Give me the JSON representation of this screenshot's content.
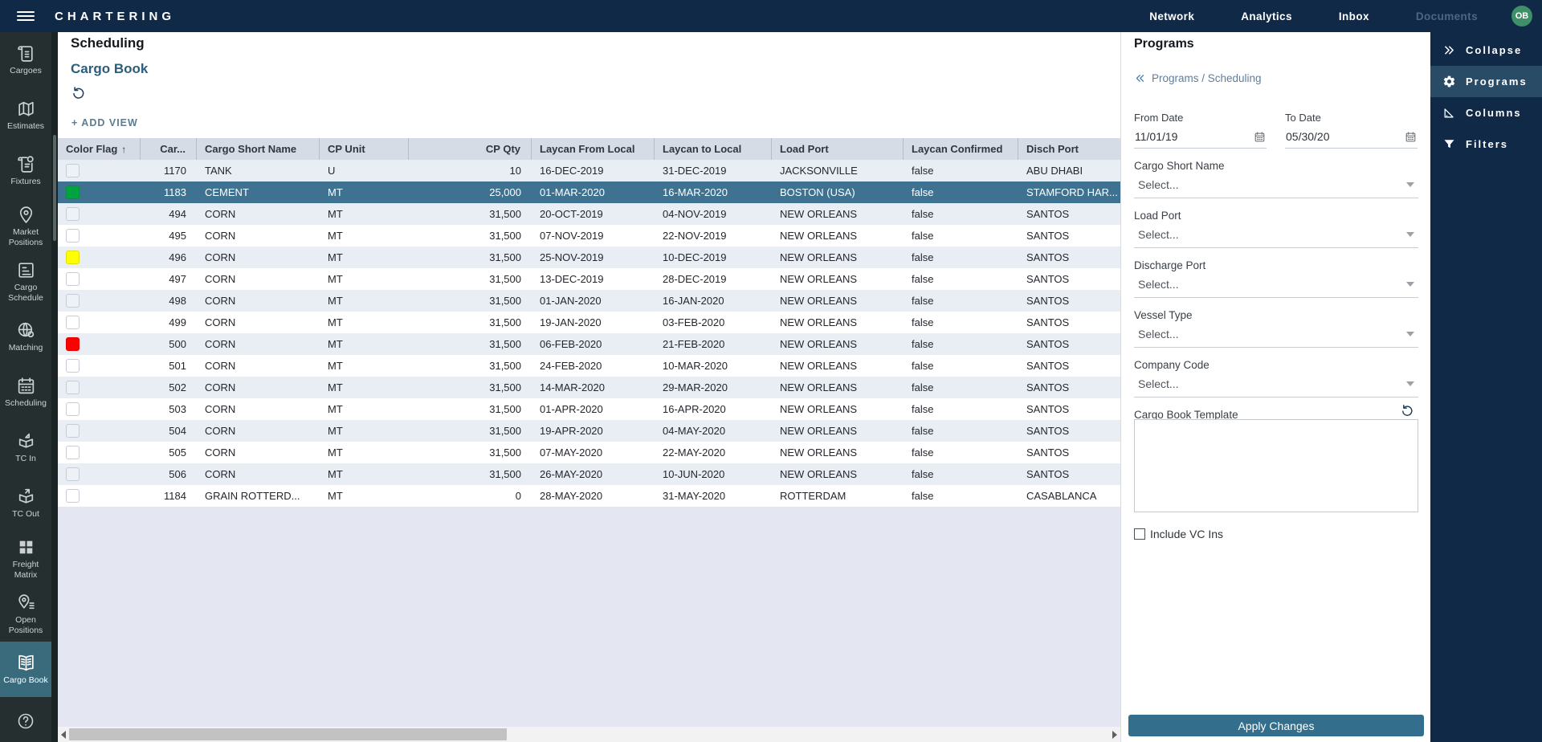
{
  "colors": {
    "navy": "#0f2947",
    "sidebar_bg": "#252f2f",
    "sidebar_active_bg": "#3a6b7d",
    "selected_row_bg": "#3e7290",
    "header_row_bg": "#d6dce6",
    "stripe_row_bg": "#e9eef4",
    "accent_blue": "#2b5d7d",
    "apply_button_bg": "#336f8d",
    "avatar_bg": "#3f8f68",
    "flag_green": "#00a33f",
    "flag_yellow": "#ffff00",
    "flag_red": "#ff0000"
  },
  "topbar": {
    "brand": "CHARTERING",
    "menu_icon": "hamburger-icon",
    "nav": [
      {
        "label": "Network",
        "muted": false
      },
      {
        "label": "Analytics",
        "muted": false
      },
      {
        "label": "Inbox",
        "muted": false
      },
      {
        "label": "Documents",
        "muted": true
      }
    ],
    "avatar": "OB"
  },
  "sidebar": {
    "items": [
      {
        "label": "Cargoes",
        "icon": "scroll-icon",
        "active": false
      },
      {
        "label": "Estimates",
        "icon": "map-icon",
        "active": false
      },
      {
        "label": "Fixtures",
        "icon": "scroll-gear-icon",
        "active": false
      },
      {
        "label": "Market Positions",
        "icon": "pin-icon",
        "active": false
      },
      {
        "label": "Cargo Schedule",
        "icon": "gantt-icon",
        "active": false
      },
      {
        "label": "Matching",
        "icon": "globe-gear-icon",
        "active": false
      },
      {
        "label": "Scheduling",
        "icon": "calendar-icon",
        "active": false
      },
      {
        "label": "TC In",
        "icon": "box-in-icon",
        "active": false
      },
      {
        "label": "TC Out",
        "icon": "box-out-icon",
        "active": false
      },
      {
        "label": "Freight Matrix",
        "icon": "grid-icon",
        "active": false
      },
      {
        "label": "Open Positions",
        "icon": "pin-list-icon",
        "active": false
      },
      {
        "label": "Cargo Book",
        "icon": "open-book-icon",
        "active": true
      }
    ],
    "help_icon": "help-icon"
  },
  "main": {
    "title": "Scheduling",
    "subtitle": "Cargo Book",
    "reset_icon": "undo-icon",
    "add_view_label": "+ ADD VIEW"
  },
  "table": {
    "columns": [
      {
        "key": "flag",
        "label": "Color Flag",
        "sorted_asc": true
      },
      {
        "key": "car",
        "label": "Car..."
      },
      {
        "key": "name",
        "label": "Cargo Short Name"
      },
      {
        "key": "unit",
        "label": "CP Unit"
      },
      {
        "key": "qty",
        "label": "CP Qty"
      },
      {
        "key": "from",
        "label": "Laycan From Local"
      },
      {
        "key": "to",
        "label": "Laycan to Local"
      },
      {
        "key": "load",
        "label": "Load Port"
      },
      {
        "key": "confirmed",
        "label": "Laycan Confirmed"
      },
      {
        "key": "disch",
        "label": "Disch Port"
      }
    ],
    "rows": [
      {
        "flag": "",
        "car": "1170",
        "name": "TANK",
        "unit": "U",
        "qty": "10",
        "from": "16-DEC-2019",
        "to": "31-DEC-2019",
        "load": "JACKSONVILLE",
        "confirmed": "false",
        "disch": "ABU DHABI",
        "selected": false
      },
      {
        "flag": "green",
        "car": "1183",
        "name": "CEMENT",
        "unit": "MT",
        "qty": "25,000",
        "from": "01-MAR-2020",
        "to": "16-MAR-2020",
        "load": "BOSTON (USA)",
        "confirmed": "false",
        "disch": "STAMFORD HAR...",
        "selected": true
      },
      {
        "flag": "",
        "car": "494",
        "name": "CORN",
        "unit": "MT",
        "qty": "31,500",
        "from": "20-OCT-2019",
        "to": "04-NOV-2019",
        "load": "NEW ORLEANS",
        "confirmed": "false",
        "disch": "SANTOS",
        "selected": false
      },
      {
        "flag": "",
        "car": "495",
        "name": "CORN",
        "unit": "MT",
        "qty": "31,500",
        "from": "07-NOV-2019",
        "to": "22-NOV-2019",
        "load": "NEW ORLEANS",
        "confirmed": "false",
        "disch": "SANTOS",
        "selected": false
      },
      {
        "flag": "yellow",
        "car": "496",
        "name": "CORN",
        "unit": "MT",
        "qty": "31,500",
        "from": "25-NOV-2019",
        "to": "10-DEC-2019",
        "load": "NEW ORLEANS",
        "confirmed": "false",
        "disch": "SANTOS",
        "selected": false
      },
      {
        "flag": "",
        "car": "497",
        "name": "CORN",
        "unit": "MT",
        "qty": "31,500",
        "from": "13-DEC-2019",
        "to": "28-DEC-2019",
        "load": "NEW ORLEANS",
        "confirmed": "false",
        "disch": "SANTOS",
        "selected": false
      },
      {
        "flag": "",
        "car": "498",
        "name": "CORN",
        "unit": "MT",
        "qty": "31,500",
        "from": "01-JAN-2020",
        "to": "16-JAN-2020",
        "load": "NEW ORLEANS",
        "confirmed": "false",
        "disch": "SANTOS",
        "selected": false
      },
      {
        "flag": "",
        "car": "499",
        "name": "CORN",
        "unit": "MT",
        "qty": "31,500",
        "from": "19-JAN-2020",
        "to": "03-FEB-2020",
        "load": "NEW ORLEANS",
        "confirmed": "false",
        "disch": "SANTOS",
        "selected": false
      },
      {
        "flag": "red",
        "car": "500",
        "name": "CORN",
        "unit": "MT",
        "qty": "31,500",
        "from": "06-FEB-2020",
        "to": "21-FEB-2020",
        "load": "NEW ORLEANS",
        "confirmed": "false",
        "disch": "SANTOS",
        "selected": false
      },
      {
        "flag": "",
        "car": "501",
        "name": "CORN",
        "unit": "MT",
        "qty": "31,500",
        "from": "24-FEB-2020",
        "to": "10-MAR-2020",
        "load": "NEW ORLEANS",
        "confirmed": "false",
        "disch": "SANTOS",
        "selected": false
      },
      {
        "flag": "",
        "car": "502",
        "name": "CORN",
        "unit": "MT",
        "qty": "31,500",
        "from": "14-MAR-2020",
        "to": "29-MAR-2020",
        "load": "NEW ORLEANS",
        "confirmed": "false",
        "disch": "SANTOS",
        "selected": false
      },
      {
        "flag": "",
        "car": "503",
        "name": "CORN",
        "unit": "MT",
        "qty": "31,500",
        "from": "01-APR-2020",
        "to": "16-APR-2020",
        "load": "NEW ORLEANS",
        "confirmed": "false",
        "disch": "SANTOS",
        "selected": false
      },
      {
        "flag": "",
        "car": "504",
        "name": "CORN",
        "unit": "MT",
        "qty": "31,500",
        "from": "19-APR-2020",
        "to": "04-MAY-2020",
        "load": "NEW ORLEANS",
        "confirmed": "false",
        "disch": "SANTOS",
        "selected": false
      },
      {
        "flag": "",
        "car": "505",
        "name": "CORN",
        "unit": "MT",
        "qty": "31,500",
        "from": "07-MAY-2020",
        "to": "22-MAY-2020",
        "load": "NEW ORLEANS",
        "confirmed": "false",
        "disch": "SANTOS",
        "selected": false
      },
      {
        "flag": "",
        "car": "506",
        "name": "CORN",
        "unit": "MT",
        "qty": "31,500",
        "from": "26-MAY-2020",
        "to": "10-JUN-2020",
        "load": "NEW ORLEANS",
        "confirmed": "false",
        "disch": "SANTOS",
        "selected": false
      },
      {
        "flag": "",
        "car": "1184",
        "name": "GRAIN ROTTERD...",
        "unit": "MT",
        "qty": "0",
        "from": "28-MAY-2020",
        "to": "31-MAY-2020",
        "load": "ROTTERDAM",
        "confirmed": "false",
        "disch": "CASABLANCA",
        "selected": false
      }
    ]
  },
  "panel": {
    "title": "Programs",
    "breadcrumb": {
      "back_icon": "double-chevron-left-icon",
      "path": "Programs / Scheduling"
    },
    "from_date": {
      "label": "From Date",
      "value": "11/01/19",
      "icon": "calendar-icon"
    },
    "to_date": {
      "label": "To Date",
      "value": "05/30/20",
      "icon": "calendar-icon"
    },
    "selects": [
      {
        "label": "Cargo Short Name",
        "value": "Select..."
      },
      {
        "label": "Load Port",
        "value": "Select..."
      },
      {
        "label": "Discharge Port",
        "value": "Select..."
      },
      {
        "label": "Vessel Type",
        "value": "Select..."
      },
      {
        "label": "Company Code",
        "value": "Select..."
      }
    ],
    "template": {
      "label": "Cargo Book Template",
      "value": "",
      "reset_icon": "undo-icon"
    },
    "checkbox": {
      "label": "Include VC Ins",
      "checked": false
    },
    "apply_label": "Apply Changes"
  },
  "rightbar": {
    "items": [
      {
        "label": "Collapse",
        "icon": "double-chevron-right-icon",
        "active": false
      },
      {
        "label": "Programs",
        "icon": "gear-icon",
        "active": true
      },
      {
        "label": "Columns",
        "icon": "set-square-icon",
        "active": false
      },
      {
        "label": "Filters",
        "icon": "filter-icon",
        "active": false
      }
    ]
  }
}
